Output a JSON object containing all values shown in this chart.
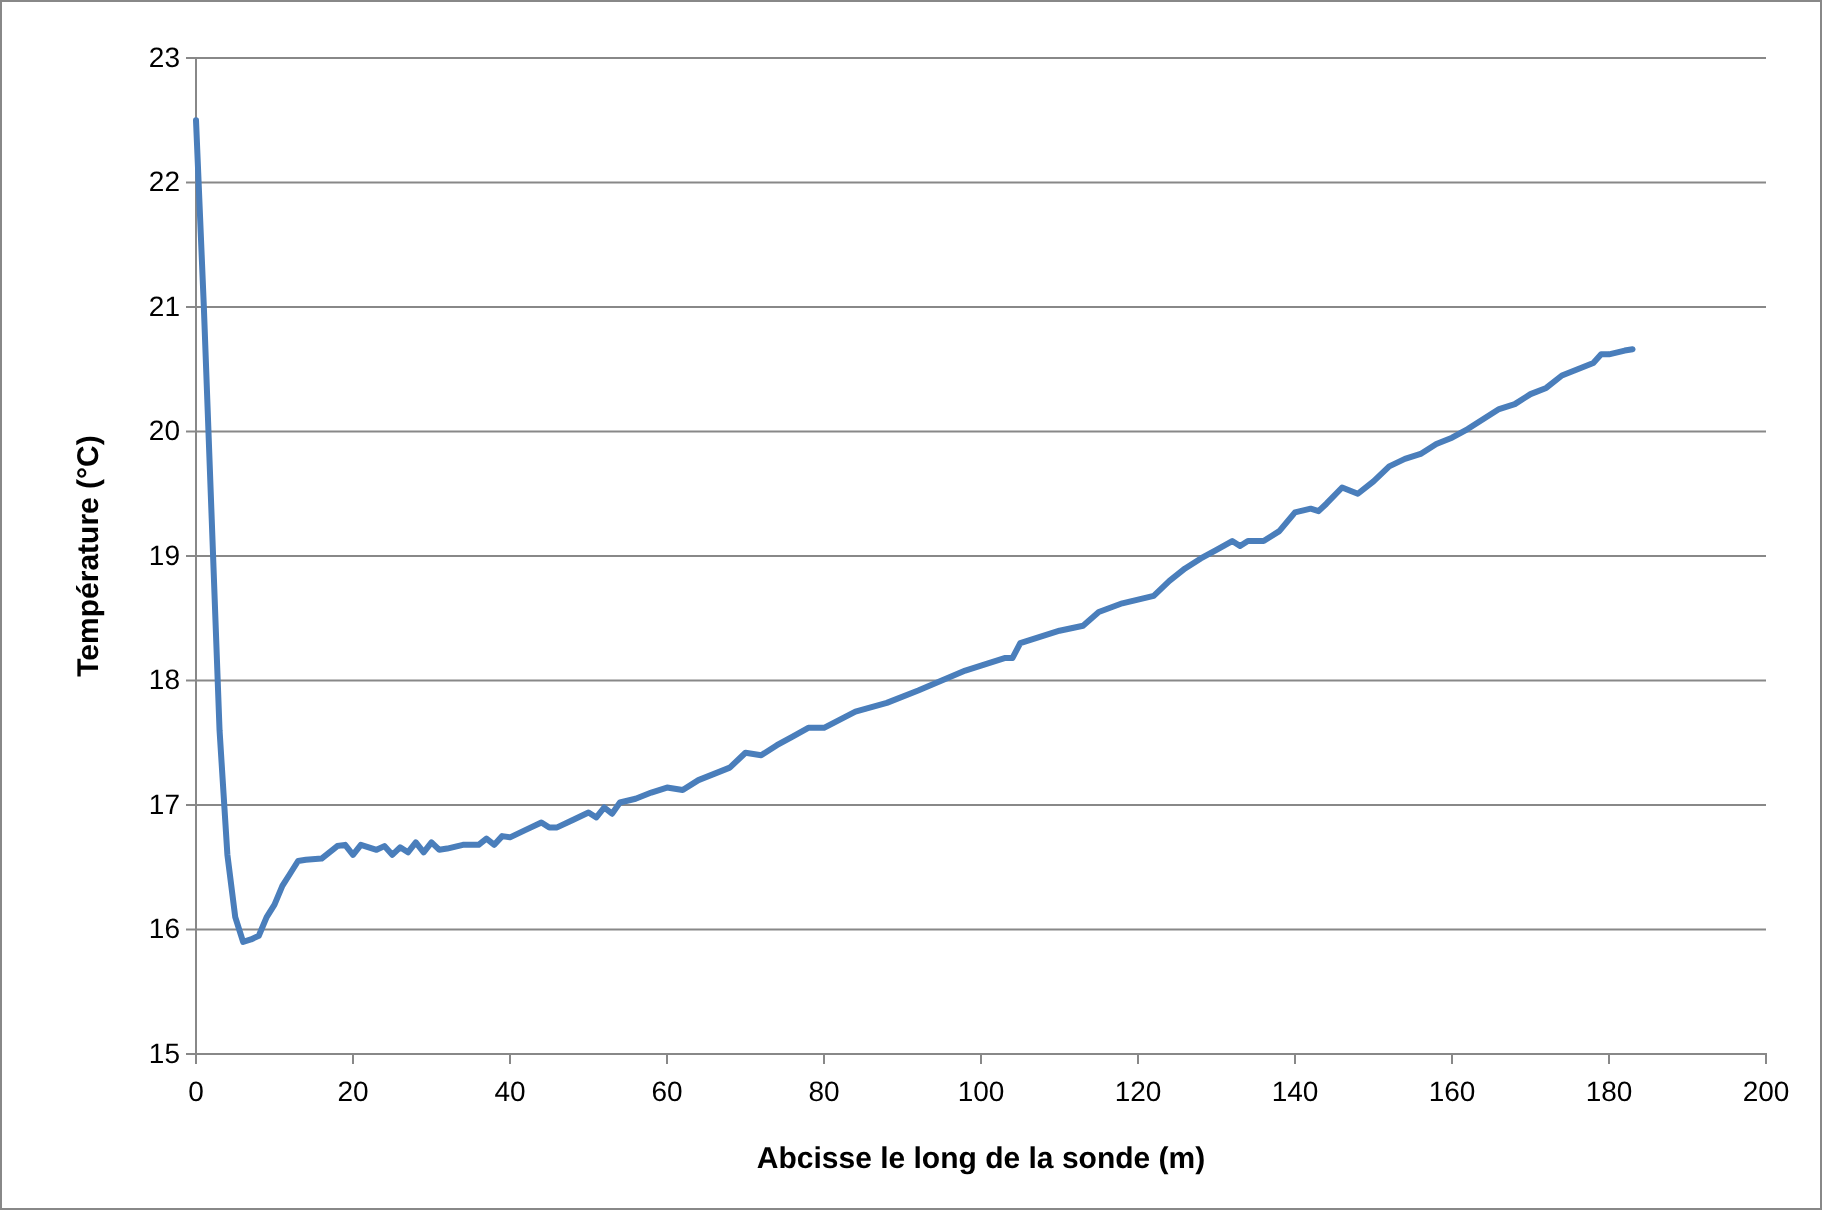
{
  "chart_data": {
    "type": "line",
    "xlabel": "Abcisse le long de la sonde (m)",
    "ylabel": "Température (°C)",
    "xlim": [
      0,
      200
    ],
    "xticks": [
      0,
      20,
      40,
      60,
      80,
      100,
      120,
      140,
      160,
      180,
      200
    ],
    "ylim": [
      15,
      23
    ],
    "yticks": [
      15,
      16,
      17,
      18,
      19,
      20,
      21,
      22,
      23
    ],
    "grid": "y",
    "marker": "none",
    "line_style": "solid",
    "series": [
      {
        "color": "#4a7ebb",
        "x": [
          0,
          1,
          2,
          3,
          4,
          5,
          6,
          7,
          8,
          9,
          10,
          11,
          12,
          13,
          14,
          16,
          17,
          18,
          19,
          20,
          21,
          23,
          24,
          25,
          26,
          27,
          28,
          29,
          30,
          31,
          32,
          34,
          36,
          37,
          38,
          39,
          40,
          42,
          44,
          45,
          46,
          48,
          50,
          51,
          52,
          53,
          54,
          56,
          58,
          60,
          62,
          64,
          66,
          68,
          70,
          72,
          74,
          76,
          78,
          80,
          84,
          88,
          92,
          95,
          98,
          100,
          103,
          104,
          105,
          108,
          110,
          113,
          115,
          118,
          120,
          122,
          124,
          126,
          128,
          130,
          132,
          133,
          134,
          136,
          138,
          140,
          142,
          143,
          144,
          146,
          148,
          150,
          152,
          154,
          156,
          158,
          160,
          162,
          164,
          166,
          168,
          170,
          172,
          174,
          176,
          178,
          179,
          180,
          182,
          183
        ],
        "values": [
          22.5,
          21,
          19.3,
          17.6,
          16.6,
          16.1,
          15.9,
          15.92,
          15.95,
          16.1,
          16.2,
          16.35,
          16.45,
          16.55,
          16.56,
          16.57,
          16.62,
          16.67,
          16.68,
          16.6,
          16.68,
          16.64,
          16.67,
          16.6,
          16.66,
          16.62,
          16.7,
          16.62,
          16.7,
          16.64,
          16.65,
          16.68,
          16.68,
          16.73,
          16.68,
          16.75,
          16.74,
          16.8,
          16.86,
          16.82,
          16.82,
          16.88,
          16.94,
          16.9,
          16.98,
          16.93,
          17.02,
          17.05,
          17.1,
          17.14,
          17.12,
          17.2,
          17.25,
          17.3,
          17.42,
          17.4,
          17.48,
          17.55,
          17.62,
          17.62,
          17.75,
          17.82,
          17.92,
          18.0,
          18.08,
          18.12,
          18.18,
          18.18,
          18.3,
          18.36,
          18.4,
          18.44,
          18.55,
          18.62,
          18.65,
          18.68,
          18.8,
          18.9,
          18.98,
          19.05,
          19.12,
          19.08,
          19.12,
          19.12,
          19.2,
          19.35,
          19.38,
          19.36,
          19.42,
          19.55,
          19.5,
          19.6,
          19.72,
          19.78,
          19.82,
          19.9,
          19.95,
          20.02,
          20.1,
          20.18,
          20.22,
          20.3,
          20.35,
          20.45,
          20.5,
          20.55,
          20.62,
          20.62,
          20.65,
          20.66
        ]
      }
    ]
  }
}
